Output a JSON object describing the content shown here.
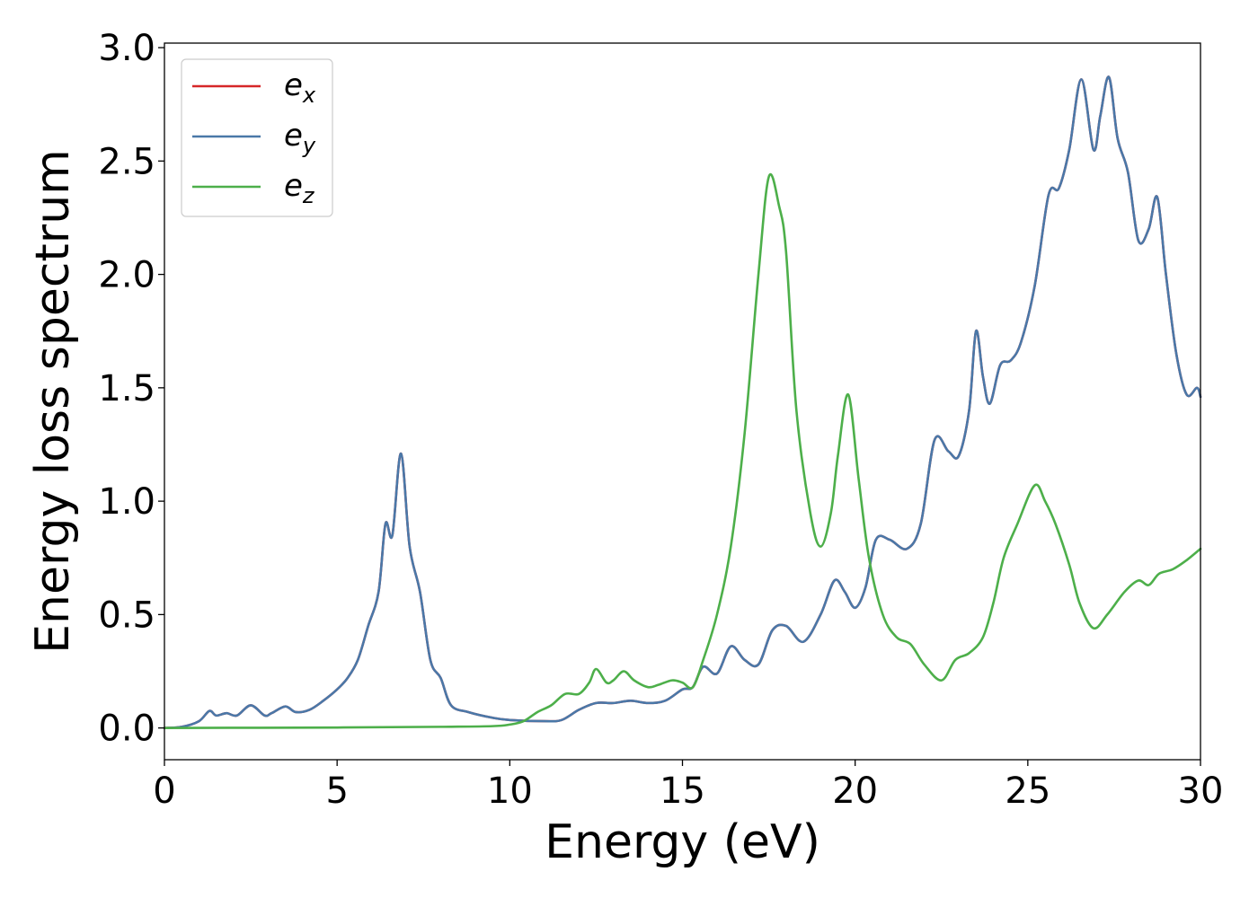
{
  "chart_data": {
    "type": "line",
    "xlabel": "Energy (eV)",
    "ylabel": "Energy loss spectrum",
    "xlim": [
      0,
      30
    ],
    "ylim": [
      -0.14,
      3.02
    ],
    "xticks": [
      0,
      5,
      10,
      15,
      20,
      25,
      30
    ],
    "xtick_labels": [
      "0",
      "5",
      "10",
      "15",
      "20",
      "25",
      "30"
    ],
    "yticks": [
      0.0,
      0.5,
      1.0,
      1.5,
      2.0,
      2.5,
      3.0
    ],
    "ytick_labels": [
      "0.0",
      "0.5",
      "1.0",
      "1.5",
      "2.0",
      "2.5",
      "3.0"
    ],
    "grid": false,
    "legend_position": "top-left",
    "series": [
      {
        "name": "e_x",
        "legend_base": "e",
        "legend_sub": "x",
        "color": "#d62728",
        "points": [
          [
            0,
            0
          ],
          [
            0.5,
            0.005
          ],
          [
            1.0,
            0.03
          ],
          [
            1.3,
            0.075
          ],
          [
            1.5,
            0.055
          ],
          [
            1.8,
            0.065
          ],
          [
            2.1,
            0.055
          ],
          [
            2.5,
            0.1
          ],
          [
            2.9,
            0.055
          ],
          [
            3.1,
            0.065
          ],
          [
            3.5,
            0.095
          ],
          [
            3.8,
            0.07
          ],
          [
            4.2,
            0.08
          ],
          [
            4.6,
            0.12
          ],
          [
            5.0,
            0.17
          ],
          [
            5.3,
            0.22
          ],
          [
            5.6,
            0.3
          ],
          [
            5.9,
            0.45
          ],
          [
            6.2,
            0.6
          ],
          [
            6.4,
            0.9
          ],
          [
            6.6,
            0.85
          ],
          [
            6.85,
            1.21
          ],
          [
            7.1,
            0.8
          ],
          [
            7.4,
            0.6
          ],
          [
            7.7,
            0.3
          ],
          [
            8.0,
            0.22
          ],
          [
            8.3,
            0.1
          ],
          [
            8.8,
            0.07
          ],
          [
            9.5,
            0.045
          ],
          [
            10.0,
            0.035
          ],
          [
            11.0,
            0.03
          ],
          [
            11.5,
            0.035
          ],
          [
            12.0,
            0.08
          ],
          [
            12.5,
            0.11
          ],
          [
            13.0,
            0.11
          ],
          [
            13.5,
            0.12
          ],
          [
            14.0,
            0.11
          ],
          [
            14.5,
            0.12
          ],
          [
            15.0,
            0.17
          ],
          [
            15.3,
            0.18
          ],
          [
            15.6,
            0.27
          ],
          [
            16.0,
            0.24
          ],
          [
            16.4,
            0.36
          ],
          [
            16.8,
            0.3
          ],
          [
            17.2,
            0.28
          ],
          [
            17.6,
            0.43
          ],
          [
            18.0,
            0.45
          ],
          [
            18.5,
            0.38
          ],
          [
            19.0,
            0.5
          ],
          [
            19.4,
            0.65
          ],
          [
            19.7,
            0.6
          ],
          [
            20.0,
            0.53
          ],
          [
            20.3,
            0.62
          ],
          [
            20.6,
            0.83
          ],
          [
            21.0,
            0.83
          ],
          [
            21.5,
            0.79
          ],
          [
            21.9,
            0.9
          ],
          [
            22.3,
            1.27
          ],
          [
            22.7,
            1.22
          ],
          [
            23.0,
            1.2
          ],
          [
            23.3,
            1.4
          ],
          [
            23.5,
            1.75
          ],
          [
            23.7,
            1.55
          ],
          [
            23.9,
            1.43
          ],
          [
            24.2,
            1.6
          ],
          [
            24.5,
            1.62
          ],
          [
            24.8,
            1.7
          ],
          [
            25.2,
            1.95
          ],
          [
            25.6,
            2.35
          ],
          [
            25.9,
            2.38
          ],
          [
            26.2,
            2.55
          ],
          [
            26.55,
            2.86
          ],
          [
            26.9,
            2.55
          ],
          [
            27.1,
            2.7
          ],
          [
            27.35,
            2.87
          ],
          [
            27.6,
            2.6
          ],
          [
            27.9,
            2.45
          ],
          [
            28.2,
            2.15
          ],
          [
            28.5,
            2.2
          ],
          [
            28.75,
            2.34
          ],
          [
            29.0,
            2.0
          ],
          [
            29.3,
            1.65
          ],
          [
            29.6,
            1.47
          ],
          [
            29.9,
            1.5
          ],
          [
            30.0,
            1.46
          ]
        ]
      },
      {
        "name": "e_y",
        "legend_base": "e",
        "legend_sub": "y",
        "color": "#4a78a8",
        "points": [
          [
            0,
            0
          ],
          [
            0.5,
            0.005
          ],
          [
            1.0,
            0.03
          ],
          [
            1.3,
            0.075
          ],
          [
            1.5,
            0.055
          ],
          [
            1.8,
            0.065
          ],
          [
            2.1,
            0.055
          ],
          [
            2.5,
            0.1
          ],
          [
            2.9,
            0.055
          ],
          [
            3.1,
            0.065
          ],
          [
            3.5,
            0.095
          ],
          [
            3.8,
            0.07
          ],
          [
            4.2,
            0.08
          ],
          [
            4.6,
            0.12
          ],
          [
            5.0,
            0.17
          ],
          [
            5.3,
            0.22
          ],
          [
            5.6,
            0.3
          ],
          [
            5.9,
            0.45
          ],
          [
            6.2,
            0.6
          ],
          [
            6.4,
            0.9
          ],
          [
            6.6,
            0.85
          ],
          [
            6.85,
            1.21
          ],
          [
            7.1,
            0.8
          ],
          [
            7.4,
            0.6
          ],
          [
            7.7,
            0.3
          ],
          [
            8.0,
            0.22
          ],
          [
            8.3,
            0.1
          ],
          [
            8.8,
            0.07
          ],
          [
            9.5,
            0.045
          ],
          [
            10.0,
            0.035
          ],
          [
            11.0,
            0.03
          ],
          [
            11.5,
            0.035
          ],
          [
            12.0,
            0.08
          ],
          [
            12.5,
            0.11
          ],
          [
            13.0,
            0.11
          ],
          [
            13.5,
            0.12
          ],
          [
            14.0,
            0.11
          ],
          [
            14.5,
            0.12
          ],
          [
            15.0,
            0.17
          ],
          [
            15.3,
            0.18
          ],
          [
            15.6,
            0.27
          ],
          [
            16.0,
            0.24
          ],
          [
            16.4,
            0.36
          ],
          [
            16.8,
            0.3
          ],
          [
            17.2,
            0.28
          ],
          [
            17.6,
            0.43
          ],
          [
            18.0,
            0.45
          ],
          [
            18.5,
            0.38
          ],
          [
            19.0,
            0.5
          ],
          [
            19.4,
            0.65
          ],
          [
            19.7,
            0.6
          ],
          [
            20.0,
            0.53
          ],
          [
            20.3,
            0.62
          ],
          [
            20.6,
            0.83
          ],
          [
            21.0,
            0.83
          ],
          [
            21.5,
            0.79
          ],
          [
            21.9,
            0.9
          ],
          [
            22.3,
            1.27
          ],
          [
            22.7,
            1.22
          ],
          [
            23.0,
            1.2
          ],
          [
            23.3,
            1.4
          ],
          [
            23.5,
            1.75
          ],
          [
            23.7,
            1.55
          ],
          [
            23.9,
            1.43
          ],
          [
            24.2,
            1.6
          ],
          [
            24.5,
            1.62
          ],
          [
            24.8,
            1.7
          ],
          [
            25.2,
            1.95
          ],
          [
            25.6,
            2.35
          ],
          [
            25.9,
            2.38
          ],
          [
            26.2,
            2.55
          ],
          [
            26.55,
            2.86
          ],
          [
            26.9,
            2.55
          ],
          [
            27.1,
            2.7
          ],
          [
            27.35,
            2.87
          ],
          [
            27.6,
            2.6
          ],
          [
            27.9,
            2.45
          ],
          [
            28.2,
            2.15
          ],
          [
            28.5,
            2.2
          ],
          [
            28.75,
            2.34
          ],
          [
            29.0,
            2.0
          ],
          [
            29.3,
            1.65
          ],
          [
            29.6,
            1.47
          ],
          [
            29.9,
            1.5
          ],
          [
            30.0,
            1.46
          ]
        ]
      },
      {
        "name": "e_z",
        "legend_base": "e",
        "legend_sub": "z",
        "color": "#4daf4a",
        "points": [
          [
            0,
            0
          ],
          [
            5.0,
            0.002
          ],
          [
            8.0,
            0.005
          ],
          [
            9.5,
            0.008
          ],
          [
            10.0,
            0.015
          ],
          [
            10.4,
            0.03
          ],
          [
            10.8,
            0.07
          ],
          [
            11.2,
            0.1
          ],
          [
            11.6,
            0.15
          ],
          [
            12.0,
            0.15
          ],
          [
            12.3,
            0.2
          ],
          [
            12.5,
            0.26
          ],
          [
            12.8,
            0.2
          ],
          [
            13.0,
            0.21
          ],
          [
            13.3,
            0.25
          ],
          [
            13.6,
            0.21
          ],
          [
            14.0,
            0.18
          ],
          [
            14.3,
            0.19
          ],
          [
            14.7,
            0.21
          ],
          [
            15.0,
            0.2
          ],
          [
            15.3,
            0.18
          ],
          [
            15.6,
            0.3
          ],
          [
            16.0,
            0.5
          ],
          [
            16.4,
            0.8
          ],
          [
            16.8,
            1.3
          ],
          [
            17.2,
            2.0
          ],
          [
            17.5,
            2.43
          ],
          [
            17.8,
            2.3
          ],
          [
            18.0,
            2.1
          ],
          [
            18.3,
            1.4
          ],
          [
            18.7,
            0.95
          ],
          [
            19.0,
            0.8
          ],
          [
            19.3,
            0.95
          ],
          [
            19.5,
            1.2
          ],
          [
            19.8,
            1.47
          ],
          [
            20.1,
            1.1
          ],
          [
            20.4,
            0.75
          ],
          [
            20.8,
            0.5
          ],
          [
            21.2,
            0.4
          ],
          [
            21.6,
            0.37
          ],
          [
            22.0,
            0.28
          ],
          [
            22.5,
            0.21
          ],
          [
            22.9,
            0.3
          ],
          [
            23.3,
            0.33
          ],
          [
            23.7,
            0.4
          ],
          [
            24.0,
            0.55
          ],
          [
            24.3,
            0.75
          ],
          [
            24.7,
            0.9
          ],
          [
            25.2,
            1.07
          ],
          [
            25.5,
            1.0
          ],
          [
            25.8,
            0.9
          ],
          [
            26.2,
            0.72
          ],
          [
            26.5,
            0.55
          ],
          [
            26.9,
            0.44
          ],
          [
            27.3,
            0.5
          ],
          [
            27.8,
            0.6
          ],
          [
            28.2,
            0.65
          ],
          [
            28.5,
            0.63
          ],
          [
            28.8,
            0.68
          ],
          [
            29.2,
            0.7
          ],
          [
            29.6,
            0.74
          ],
          [
            30.0,
            0.79
          ]
        ]
      }
    ]
  }
}
